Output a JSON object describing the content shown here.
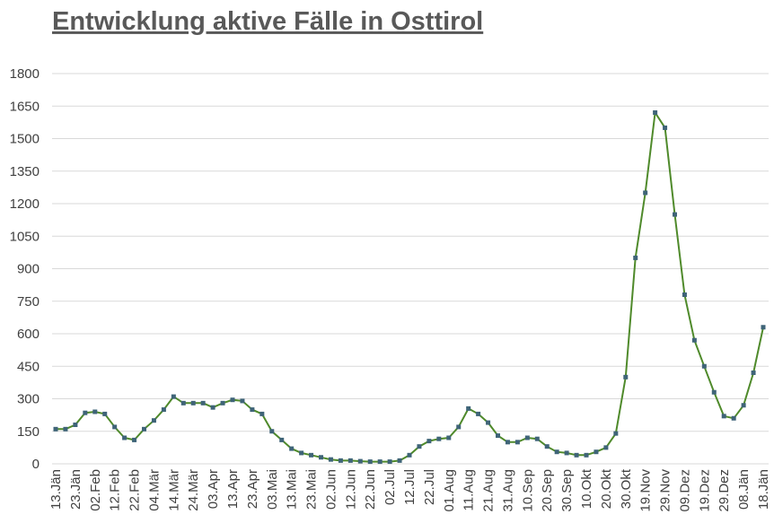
{
  "chart_data": {
    "type": "line",
    "title": "Entwicklung aktive Fälle in Osttirol",
    "categories": [
      "13.Jän",
      null,
      "23.Jän",
      null,
      "02.Feb",
      null,
      "12.Feb",
      null,
      "22.Feb",
      null,
      "04.Mär",
      null,
      "14.Mär",
      null,
      "24.Mär",
      null,
      "03.Apr",
      null,
      "13.Apr",
      null,
      "23.Apr",
      null,
      "03.Mai",
      null,
      "13.Mai",
      null,
      "23.Mai",
      null,
      "02.Jun",
      null,
      "12.Jun",
      null,
      "22.Jun",
      null,
      "02.Jul",
      null,
      "12.Jul",
      null,
      "22.Jul",
      null,
      "01.Aug",
      null,
      "11.Aug",
      null,
      "21.Aug",
      null,
      "31.Aug",
      null,
      "10.Sep",
      null,
      "20.Sep",
      null,
      "30.Sep",
      null,
      "10.Okt",
      null,
      "20.Okt",
      null,
      "30.Okt",
      null,
      "19.Nov",
      null,
      "29.Nov",
      null,
      "09.Dez",
      null,
      "19.Dez",
      null,
      "29.Dez",
      null,
      "08.Jän",
      null,
      "18.Jän"
    ],
    "series": [
      {
        "color": "#4f8a2b",
        "marker_color": "#3f6478",
        "values": [
          160,
          160,
          180,
          235,
          240,
          230,
          170,
          120,
          110,
          160,
          200,
          250,
          310,
          280,
          280,
          280,
          260,
          280,
          295,
          290,
          250,
          230,
          150,
          110,
          70,
          50,
          40,
          30,
          20,
          15,
          15,
          12,
          10,
          10,
          10,
          15,
          40,
          80,
          105,
          115,
          120,
          170,
          255,
          230,
          190,
          130,
          100,
          100,
          120,
          115,
          80,
          55,
          50,
          40,
          40,
          55,
          75,
          140,
          400,
          950,
          1250,
          1620,
          1550,
          1150,
          780,
          570,
          450,
          330,
          220,
          210,
          270,
          420,
          630
        ]
      }
    ],
    "ylim": [
      0,
      1800
    ],
    "yticks": [
      0,
      150,
      300,
      450,
      600,
      750,
      900,
      1050,
      1200,
      1350,
      1500,
      1650,
      1800
    ],
    "grid": true
  }
}
